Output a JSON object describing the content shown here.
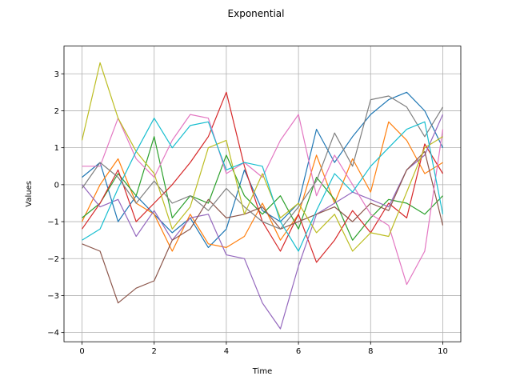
{
  "chart_data": {
    "type": "line",
    "title": "Exponential",
    "xlabel": "Time",
    "ylabel": "Values",
    "xlim": [
      -0.5,
      10.5
    ],
    "ylim": [
      -4.25,
      3.75
    ],
    "xticks": [
      0,
      2,
      4,
      6,
      8,
      10
    ],
    "yticks": [
      -4,
      -3,
      -2,
      -1,
      0,
      1,
      2,
      3
    ],
    "grid": true,
    "series": [
      {
        "color": "#1f77b4",
        "points": [
          [
            0,
            0.2
          ],
          [
            0.5,
            0.6
          ],
          [
            1,
            -1.0
          ],
          [
            1.5,
            -0.3
          ],
          [
            2,
            -0.8
          ],
          [
            2.5,
            -1.3
          ],
          [
            3,
            -0.9
          ],
          [
            3.5,
            -1.7
          ],
          [
            4,
            -1.2
          ],
          [
            4.5,
            0.4
          ],
          [
            5,
            -0.7
          ],
          [
            5.5,
            -1.0
          ],
          [
            6,
            -0.5
          ],
          [
            6.5,
            1.5
          ],
          [
            7,
            0.6
          ],
          [
            7.5,
            1.3
          ],
          [
            8,
            1.9
          ],
          [
            8.5,
            2.3
          ],
          [
            9,
            2.5
          ],
          [
            9.5,
            2.0
          ],
          [
            10,
            1.0
          ]
        ]
      },
      {
        "color": "#ff7f0e",
        "points": [
          [
            0,
            -1.0
          ],
          [
            0.5,
            0.0
          ],
          [
            1,
            0.7
          ],
          [
            1.5,
            -0.5
          ],
          [
            2,
            -0.8
          ],
          [
            2.5,
            -1.8
          ],
          [
            3,
            -0.8
          ],
          [
            3.5,
            -1.6
          ],
          [
            4,
            -1.7
          ],
          [
            4.5,
            -1.4
          ],
          [
            5,
            -0.5
          ],
          [
            5.5,
            -1.5
          ],
          [
            6,
            -0.8
          ],
          [
            6.5,
            0.8
          ],
          [
            7,
            -0.5
          ],
          [
            7.5,
            0.7
          ],
          [
            8,
            -0.2
          ],
          [
            8.5,
            1.7
          ],
          [
            9,
            1.2
          ],
          [
            9.5,
            0.3
          ],
          [
            10,
            0.6
          ]
        ]
      },
      {
        "color": "#2ca02c",
        "points": [
          [
            0,
            -0.9
          ],
          [
            0.5,
            -0.5
          ],
          [
            1,
            0.3
          ],
          [
            1.5,
            -0.3
          ],
          [
            2,
            1.3
          ],
          [
            2.5,
            -0.9
          ],
          [
            3,
            -0.3
          ],
          [
            3.5,
            -0.5
          ],
          [
            4,
            0.8
          ],
          [
            4.5,
            -0.3
          ],
          [
            5,
            -0.8
          ],
          [
            5.5,
            -0.3
          ],
          [
            6,
            -1.2
          ],
          [
            6.5,
            0.2
          ],
          [
            7,
            -0.4
          ],
          [
            7.5,
            -1.5
          ],
          [
            8,
            -0.9
          ],
          [
            8.5,
            -0.4
          ],
          [
            9,
            -0.5
          ],
          [
            9.5,
            -0.8
          ],
          [
            10,
            -0.3
          ]
        ]
      },
      {
        "color": "#d62728",
        "points": [
          [
            0,
            -1.2
          ],
          [
            0.5,
            -0.5
          ],
          [
            1,
            0.4
          ],
          [
            1.5,
            -1.0
          ],
          [
            2,
            -0.5
          ],
          [
            2.5,
            0.0
          ],
          [
            3,
            0.6
          ],
          [
            3.5,
            1.3
          ],
          [
            4,
            2.5
          ],
          [
            4.5,
            0.5
          ],
          [
            5,
            -1.0
          ],
          [
            5.5,
            -1.8
          ],
          [
            6,
            -0.8
          ],
          [
            6.5,
            -2.1
          ],
          [
            7,
            -1.5
          ],
          [
            7.5,
            -0.7
          ],
          [
            8,
            -1.3
          ],
          [
            8.5,
            -0.5
          ],
          [
            9,
            -0.9
          ],
          [
            9.5,
            1.1
          ],
          [
            10,
            0.3
          ]
        ]
      },
      {
        "color": "#9467bd",
        "points": [
          [
            0,
            0.0
          ],
          [
            0.5,
            -0.6
          ],
          [
            1,
            -0.4
          ],
          [
            1.5,
            -1.4
          ],
          [
            2,
            -0.7
          ],
          [
            2.5,
            -1.5
          ],
          [
            3,
            -0.9
          ],
          [
            3.5,
            -0.8
          ],
          [
            4,
            -1.9
          ],
          [
            4.5,
            -2.0
          ],
          [
            5,
            -3.2
          ],
          [
            5.5,
            -3.9
          ],
          [
            6,
            -2.2
          ],
          [
            6.5,
            -0.8
          ],
          [
            7,
            -0.5
          ],
          [
            7.5,
            -0.2
          ],
          [
            8,
            -0.4
          ],
          [
            8.5,
            -0.6
          ],
          [
            9,
            0.4
          ],
          [
            9.5,
            0.8
          ],
          [
            10,
            1.9
          ]
        ]
      },
      {
        "color": "#8c564b",
        "points": [
          [
            0,
            -1.6
          ],
          [
            0.5,
            -1.8
          ],
          [
            1,
            -3.2
          ],
          [
            1.5,
            -2.8
          ],
          [
            2,
            -2.6
          ],
          [
            2.5,
            -1.5
          ],
          [
            3,
            -1.2
          ],
          [
            3.5,
            -0.4
          ],
          [
            4,
            -0.9
          ],
          [
            4.5,
            -0.8
          ],
          [
            5,
            -0.6
          ],
          [
            5.5,
            -1.2
          ],
          [
            6,
            -1.0
          ],
          [
            6.5,
            -0.8
          ],
          [
            7,
            -0.6
          ],
          [
            7.5,
            -1.0
          ],
          [
            8,
            -0.5
          ],
          [
            8.5,
            -0.7
          ],
          [
            9,
            0.4
          ],
          [
            9.5,
            0.9
          ],
          [
            10,
            -1.1
          ]
        ]
      },
      {
        "color": "#e377c2",
        "points": [
          [
            0,
            0.5
          ],
          [
            0.5,
            0.5
          ],
          [
            1,
            1.8
          ],
          [
            1.5,
            0.7
          ],
          [
            2,
            0.2
          ],
          [
            2.5,
            1.2
          ],
          [
            3,
            1.9
          ],
          [
            3.5,
            1.8
          ],
          [
            4,
            0.3
          ],
          [
            4.5,
            0.6
          ],
          [
            5,
            0.2
          ],
          [
            5.5,
            1.2
          ],
          [
            6,
            1.9
          ],
          [
            6.5,
            -0.3
          ],
          [
            7,
            0.8
          ],
          [
            7.5,
            0.0
          ],
          [
            8,
            -0.8
          ],
          [
            8.5,
            -1.1
          ],
          [
            9,
            -2.7
          ],
          [
            9.5,
            -1.8
          ],
          [
            10,
            1.5
          ]
        ]
      },
      {
        "color": "#7f7f7f",
        "points": [
          [
            0,
            -0.1
          ],
          [
            0.5,
            0.6
          ],
          [
            1,
            0.2
          ],
          [
            1.5,
            -0.5
          ],
          [
            2,
            0.1
          ],
          [
            2.5,
            -0.5
          ],
          [
            3,
            -0.3
          ],
          [
            3.5,
            -0.7
          ],
          [
            4,
            -0.1
          ],
          [
            4.5,
            -0.6
          ],
          [
            5,
            -1.0
          ],
          [
            5.5,
            -1.2
          ],
          [
            6,
            -0.6
          ],
          [
            6.5,
            0.1
          ],
          [
            7,
            1.4
          ],
          [
            7.5,
            0.5
          ],
          [
            8,
            2.3
          ],
          [
            8.5,
            2.4
          ],
          [
            9,
            2.1
          ],
          [
            9.5,
            1.3
          ],
          [
            10,
            2.1
          ]
        ]
      },
      {
        "color": "#bcbd22",
        "points": [
          [
            0,
            1.2
          ],
          [
            0.5,
            3.3
          ],
          [
            1,
            1.8
          ],
          [
            1.5,
            0.9
          ],
          [
            2,
            0.3
          ],
          [
            2.5,
            -1.2
          ],
          [
            3,
            -0.6
          ],
          [
            3.5,
            1.0
          ],
          [
            4,
            1.2
          ],
          [
            4.5,
            -0.8
          ],
          [
            5,
            0.3
          ],
          [
            5.5,
            -0.9
          ],
          [
            6,
            -0.5
          ],
          [
            6.5,
            -1.3
          ],
          [
            7,
            -0.8
          ],
          [
            7.5,
            -1.8
          ],
          [
            8,
            -1.3
          ],
          [
            8.5,
            -1.4
          ],
          [
            9,
            -0.2
          ],
          [
            9.5,
            1.0
          ],
          [
            10,
            1.3
          ]
        ]
      },
      {
        "color": "#17becf",
        "points": [
          [
            0,
            -1.5
          ],
          [
            0.5,
            -1.2
          ],
          [
            1,
            -0.1
          ],
          [
            1.5,
            0.9
          ],
          [
            2,
            1.8
          ],
          [
            2.5,
            1.0
          ],
          [
            3,
            1.6
          ],
          [
            3.5,
            1.7
          ],
          [
            4,
            0.4
          ],
          [
            4.5,
            0.6
          ],
          [
            5,
            0.5
          ],
          [
            5.5,
            -1.0
          ],
          [
            6,
            -1.8
          ],
          [
            6.5,
            -0.7
          ],
          [
            7,
            0.3
          ],
          [
            7.5,
            -0.2
          ],
          [
            8,
            0.5
          ],
          [
            8.5,
            1.0
          ],
          [
            9,
            1.5
          ],
          [
            9.5,
            1.7
          ],
          [
            10,
            -0.8
          ]
        ]
      }
    ]
  }
}
